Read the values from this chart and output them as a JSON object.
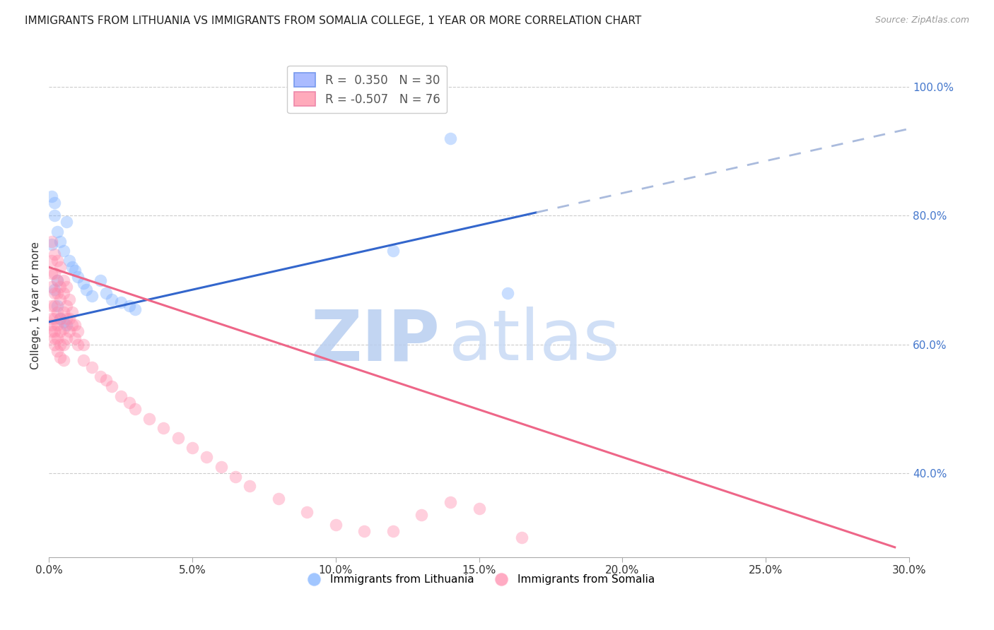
{
  "title": "IMMIGRANTS FROM LITHUANIA VS IMMIGRANTS FROM SOMALIA COLLEGE, 1 YEAR OR MORE CORRELATION CHART",
  "source": "Source: ZipAtlas.com",
  "ylabel": "College, 1 year or more",
  "watermark_zip": "ZIP",
  "watermark_atlas": "atlas",
  "xlim": [
    0.0,
    0.3
  ],
  "ylim": [
    0.27,
    1.05
  ],
  "xticks": [
    0.0,
    0.05,
    0.1,
    0.15,
    0.2,
    0.25,
    0.3
  ],
  "yticks_right": [
    0.4,
    0.6,
    0.8,
    1.0
  ],
  "ytick_labels_right": [
    "40.0%",
    "60.0%",
    "80.0%",
    "100.0%"
  ],
  "xtick_labels": [
    "0.0%",
    "5.0%",
    "10.0%",
    "15.0%",
    "20.0%",
    "25.0%",
    "30.0%"
  ],
  "background_color": "#ffffff",
  "grid_color": "#cccccc",
  "lithuania_color": "#7aaeff",
  "somalia_color": "#ff88aa",
  "lithuania_scatter": [
    [
      0.001,
      0.755
    ],
    [
      0.002,
      0.8
    ],
    [
      0.003,
      0.775
    ],
    [
      0.004,
      0.76
    ],
    [
      0.005,
      0.745
    ],
    [
      0.006,
      0.79
    ],
    [
      0.007,
      0.73
    ],
    [
      0.008,
      0.72
    ],
    [
      0.009,
      0.715
    ],
    [
      0.01,
      0.705
    ],
    [
      0.012,
      0.695
    ],
    [
      0.013,
      0.685
    ],
    [
      0.015,
      0.675
    ],
    [
      0.018,
      0.7
    ],
    [
      0.02,
      0.68
    ],
    [
      0.022,
      0.67
    ],
    [
      0.025,
      0.665
    ],
    [
      0.028,
      0.66
    ],
    [
      0.03,
      0.655
    ],
    [
      0.001,
      0.83
    ],
    [
      0.002,
      0.82
    ],
    [
      0.003,
      0.7
    ],
    [
      0.002,
      0.685
    ],
    [
      0.003,
      0.66
    ],
    [
      0.004,
      0.64
    ],
    [
      0.005,
      0.635
    ],
    [
      0.006,
      0.63
    ],
    [
      0.12,
      0.745
    ],
    [
      0.14,
      0.92
    ],
    [
      0.16,
      0.68
    ]
  ],
  "somalia_scatter": [
    [
      0.001,
      0.76
    ],
    [
      0.001,
      0.73
    ],
    [
      0.001,
      0.71
    ],
    [
      0.001,
      0.69
    ],
    [
      0.001,
      0.66
    ],
    [
      0.001,
      0.64
    ],
    [
      0.001,
      0.63
    ],
    [
      0.001,
      0.62
    ],
    [
      0.002,
      0.74
    ],
    [
      0.002,
      0.71
    ],
    [
      0.002,
      0.68
    ],
    [
      0.002,
      0.66
    ],
    [
      0.002,
      0.64
    ],
    [
      0.002,
      0.62
    ],
    [
      0.002,
      0.61
    ],
    [
      0.002,
      0.6
    ],
    [
      0.003,
      0.73
    ],
    [
      0.003,
      0.7
    ],
    [
      0.003,
      0.68
    ],
    [
      0.003,
      0.65
    ],
    [
      0.003,
      0.63
    ],
    [
      0.003,
      0.61
    ],
    [
      0.003,
      0.59
    ],
    [
      0.004,
      0.72
    ],
    [
      0.004,
      0.69
    ],
    [
      0.004,
      0.67
    ],
    [
      0.004,
      0.64
    ],
    [
      0.004,
      0.62
    ],
    [
      0.004,
      0.6
    ],
    [
      0.004,
      0.58
    ],
    [
      0.005,
      0.7
    ],
    [
      0.005,
      0.68
    ],
    [
      0.005,
      0.65
    ],
    [
      0.005,
      0.625
    ],
    [
      0.005,
      0.6
    ],
    [
      0.005,
      0.575
    ],
    [
      0.006,
      0.69
    ],
    [
      0.006,
      0.66
    ],
    [
      0.006,
      0.64
    ],
    [
      0.006,
      0.61
    ],
    [
      0.007,
      0.67
    ],
    [
      0.007,
      0.64
    ],
    [
      0.007,
      0.62
    ],
    [
      0.008,
      0.65
    ],
    [
      0.008,
      0.63
    ],
    [
      0.009,
      0.63
    ],
    [
      0.009,
      0.61
    ],
    [
      0.01,
      0.62
    ],
    [
      0.01,
      0.6
    ],
    [
      0.012,
      0.6
    ],
    [
      0.012,
      0.575
    ],
    [
      0.015,
      0.565
    ],
    [
      0.018,
      0.55
    ],
    [
      0.02,
      0.545
    ],
    [
      0.022,
      0.535
    ],
    [
      0.025,
      0.52
    ],
    [
      0.028,
      0.51
    ],
    [
      0.03,
      0.5
    ],
    [
      0.035,
      0.485
    ],
    [
      0.04,
      0.47
    ],
    [
      0.045,
      0.455
    ],
    [
      0.05,
      0.44
    ],
    [
      0.055,
      0.425
    ],
    [
      0.06,
      0.41
    ],
    [
      0.065,
      0.395
    ],
    [
      0.07,
      0.38
    ],
    [
      0.08,
      0.36
    ],
    [
      0.09,
      0.34
    ],
    [
      0.1,
      0.32
    ],
    [
      0.11,
      0.31
    ],
    [
      0.12,
      0.31
    ],
    [
      0.13,
      0.335
    ],
    [
      0.14,
      0.355
    ],
    [
      0.15,
      0.345
    ],
    [
      0.165,
      0.3
    ]
  ],
  "lithuania_line_solid": {
    "x0": 0.0,
    "y0": 0.635,
    "x1": 0.17,
    "y1": 0.805
  },
  "lithuania_line_dashed": {
    "x0": 0.17,
    "y0": 0.805,
    "x1": 0.3,
    "y1": 0.935
  },
  "somalia_line": {
    "x0": 0.0,
    "y0": 0.72,
    "x1": 0.295,
    "y1": 0.285
  },
  "title_fontsize": 11,
  "axis_label_fontsize": 11,
  "tick_fontsize": 11,
  "right_tick_color": "#4477cc",
  "watermark_color_zip": "#b8cef0",
  "watermark_color_atlas": "#c8daf5",
  "watermark_fontsize": 72
}
